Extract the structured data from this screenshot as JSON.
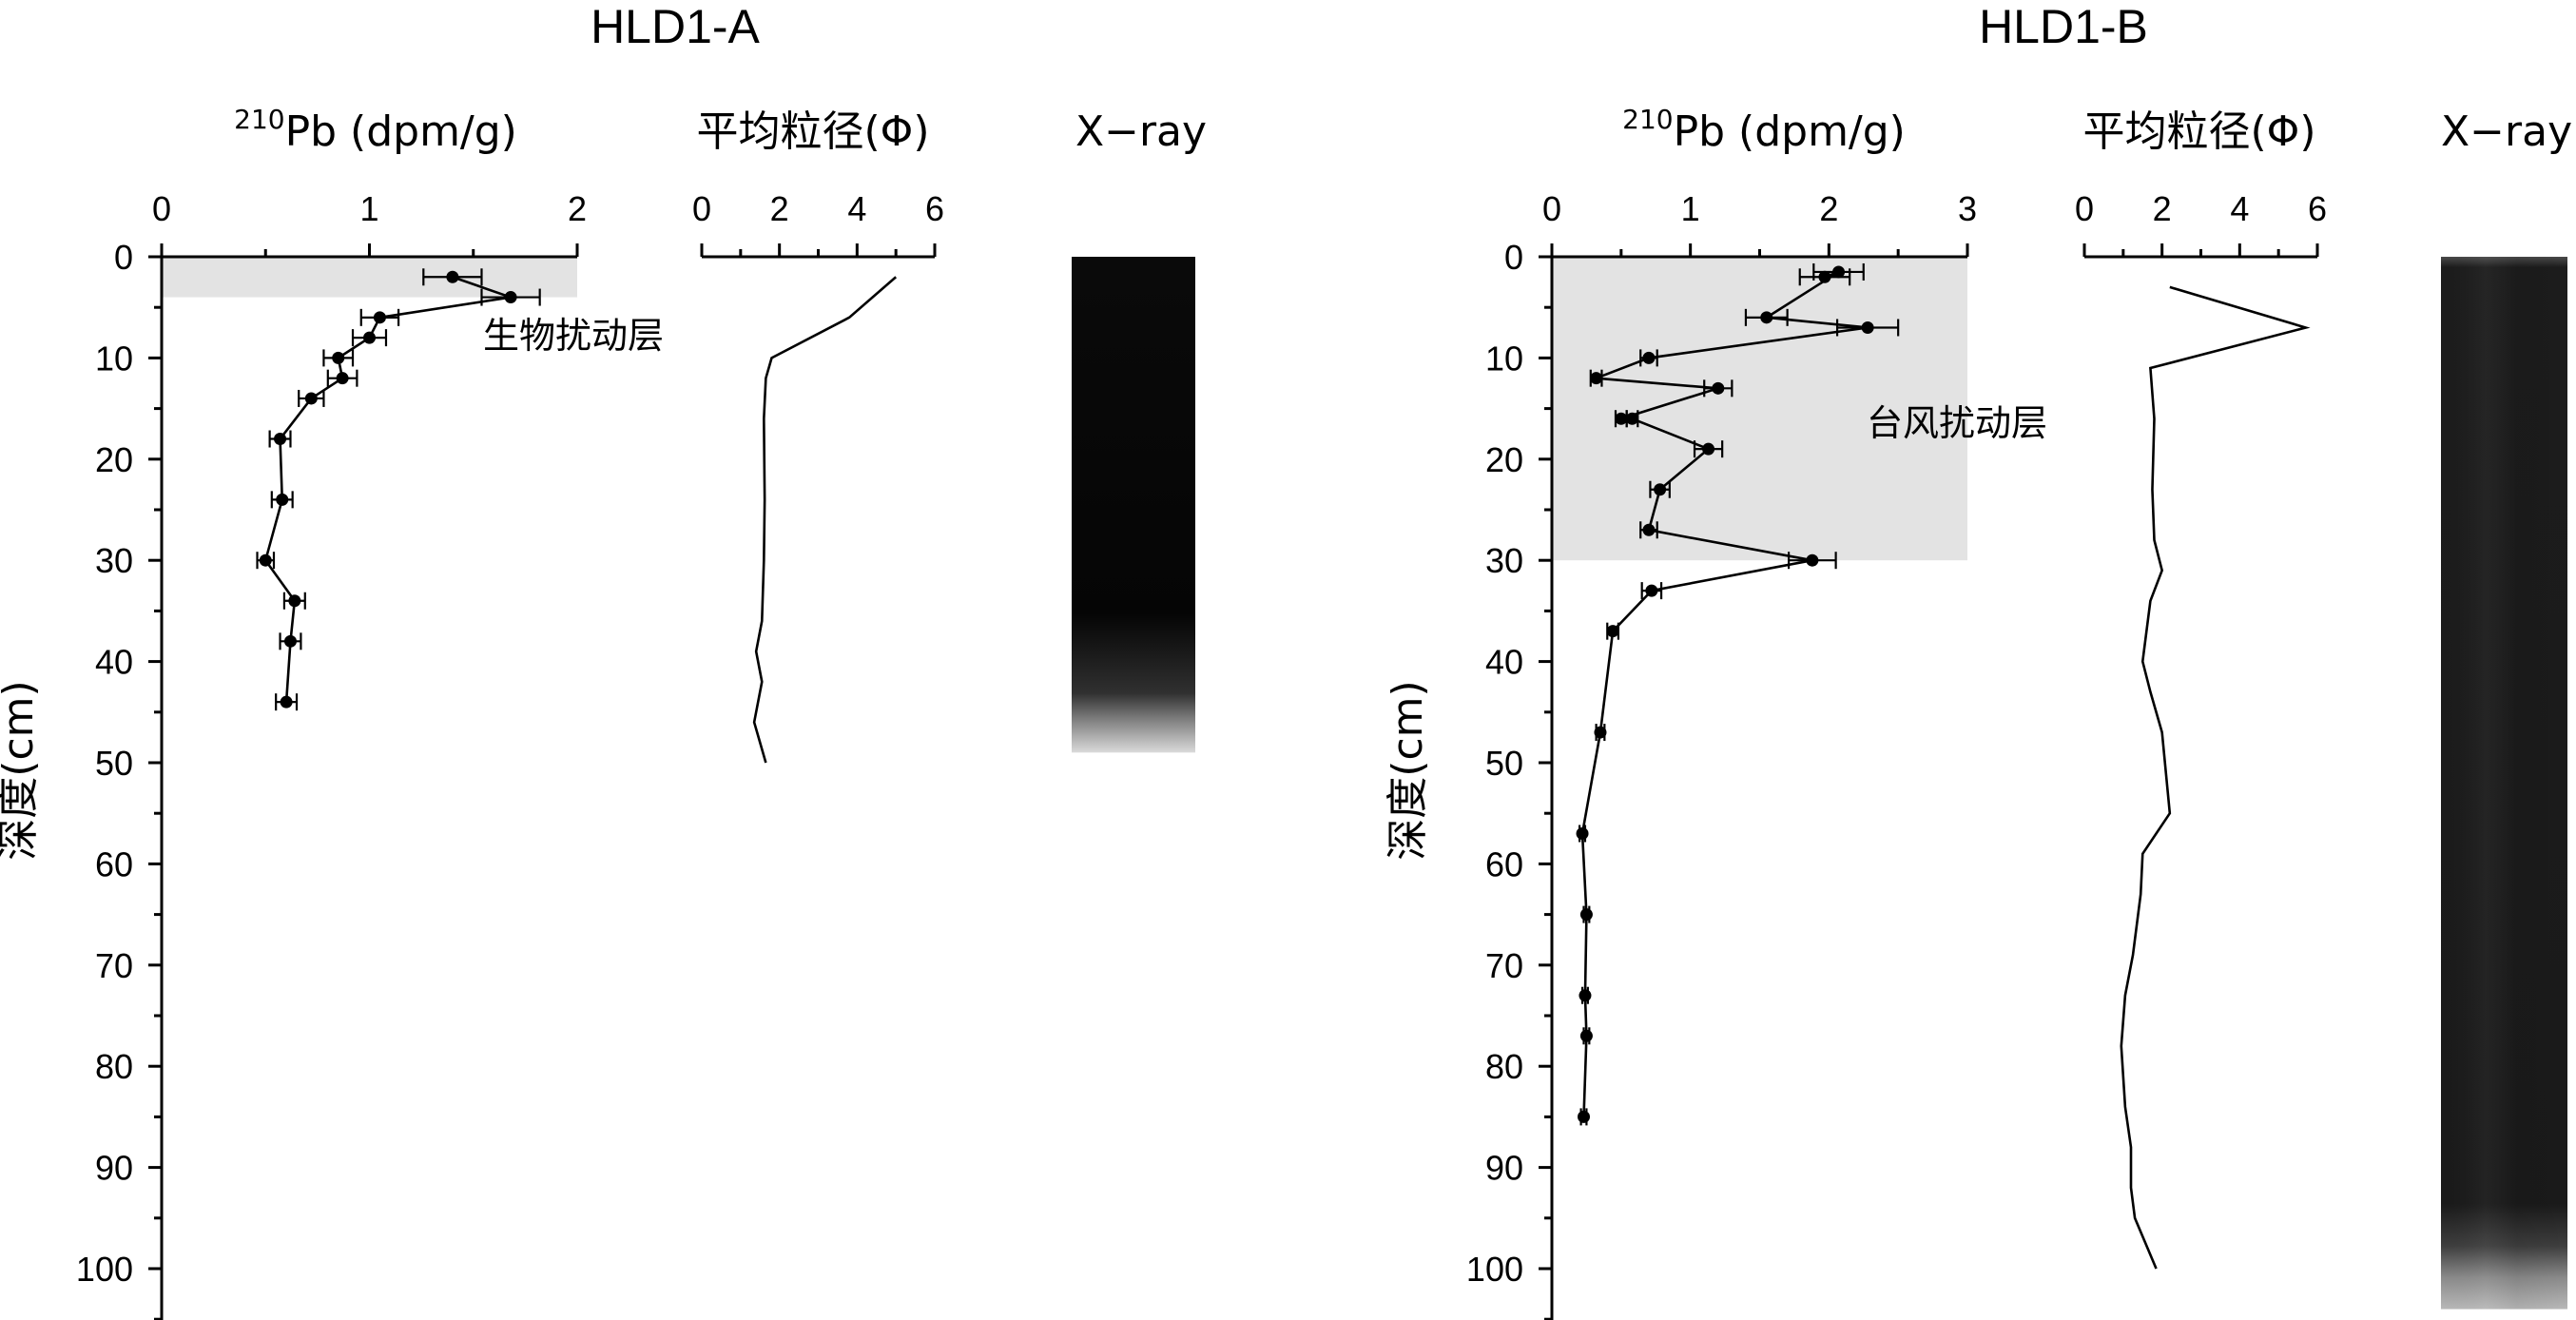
{
  "colors": {
    "ink": "#000000",
    "layer_fill": "#e3e3e3",
    "xray_dark": "#050505",
    "xray_light": "#d8d8d8"
  },
  "chart_data": [
    {
      "type": "line",
      "panel": "HLD1-A",
      "title": "HLD1-A",
      "ylabel": "深度(cm)",
      "ylim": [
        0,
        105
      ],
      "y_ticks": [
        "0",
        "10",
        "20",
        "30",
        "40",
        "50",
        "60",
        "70",
        "80",
        "90",
        "100"
      ],
      "pb": {
        "xlabel_sup": "210",
        "xlabel": "Pb (dpm/g)",
        "xlim": [
          0,
          2
        ],
        "x_ticks": [
          "0",
          "1",
          "2"
        ],
        "layer": {
          "label": "生物扰动层",
          "depth_top": 0,
          "depth_bottom": 4
        },
        "series": [
          {
            "depth": [
              2,
              4,
              6,
              8,
              10,
              12,
              14,
              18,
              24,
              30,
              34,
              38,
              44
            ],
            "value": [
              1.4,
              1.68,
              1.05,
              1.0,
              0.85,
              0.87,
              0.72,
              0.57,
              0.58,
              0.5,
              0.64,
              0.62,
              0.6
            ],
            "error": [
              0.14,
              0.14,
              0.09,
              0.08,
              0.07,
              0.07,
              0.06,
              0.05,
              0.05,
              0.04,
              0.05,
              0.05,
              0.05
            ]
          }
        ]
      },
      "grain": {
        "xlabel": "平均粒径(Φ)",
        "xlim": [
          0,
          6
        ],
        "x_ticks": [
          "0",
          "2",
          "4",
          "6"
        ],
        "series": [
          {
            "depth": [
              2,
              6,
              10,
              12,
              16,
              24,
              30,
              36,
              39,
              42,
              46,
              50
            ],
            "value": [
              5.0,
              3.8,
              1.8,
              1.65,
              1.6,
              1.62,
              1.6,
              1.55,
              1.4,
              1.55,
              1.35,
              1.65
            ]
          }
        ]
      },
      "xray": {
        "label": "X−ray",
        "depth_bottom": 49
      }
    },
    {
      "type": "line",
      "panel": "HLD1-B",
      "title": "HLD1-B",
      "ylabel": "深度(cm)",
      "ylim": [
        0,
        105
      ],
      "y_ticks": [
        "0",
        "10",
        "20",
        "30",
        "40",
        "50",
        "60",
        "70",
        "80",
        "90",
        "100"
      ],
      "pb": {
        "xlabel_sup": "210",
        "xlabel": "Pb (dpm/g)",
        "xlim": [
          0,
          3
        ],
        "x_ticks": [
          "0",
          "1",
          "2",
          "3"
        ],
        "layer": {
          "label": "台风扰动层",
          "depth_top": 0,
          "depth_bottom": 30
        },
        "series": [
          {
            "depth": [
              2,
              1.5,
              6,
              7,
              10,
              12,
              13,
              16,
              16,
              19,
              23,
              27,
              30,
              33,
              37,
              47,
              57,
              65,
              73,
              77,
              85
            ],
            "value": [
              1.97,
              2.07,
              1.55,
              2.28,
              0.7,
              0.32,
              1.2,
              0.5,
              0.58,
              1.13,
              0.78,
              0.7,
              1.88,
              0.72,
              0.44,
              0.35,
              0.22,
              0.25,
              0.24,
              0.25,
              0.23
            ],
            "error": [
              0.18,
              0.18,
              0.15,
              0.22,
              0.06,
              0.04,
              0.1,
              0.04,
              0.04,
              0.1,
              0.07,
              0.06,
              0.17,
              0.07,
              0.04,
              0.03,
              0.02,
              0.02,
              0.02,
              0.02,
              0.02
            ]
          }
        ]
      },
      "grain": {
        "xlabel": "平均粒径(Φ)",
        "xlim": [
          0,
          6
        ],
        "x_ticks": [
          "0",
          "2",
          "4",
          "6"
        ],
        "series": [
          {
            "depth": [
              3,
              7,
              11,
              16,
              23,
              28,
              31,
              34,
              40,
              43,
              47,
              55,
              59,
              63,
              69,
              73,
              78,
              84,
              88,
              92,
              95,
              100
            ],
            "value": [
              2.2,
              5.7,
              1.7,
              1.8,
              1.75,
              1.8,
              2.0,
              1.7,
              1.5,
              1.7,
              2.0,
              2.2,
              1.5,
              1.45,
              1.25,
              1.05,
              0.95,
              1.05,
              1.2,
              1.2,
              1.3,
              1.85
            ]
          }
        ]
      },
      "xray": {
        "label": "X−ray",
        "depth_bottom": 104
      }
    }
  ]
}
